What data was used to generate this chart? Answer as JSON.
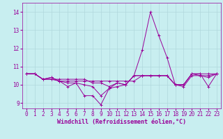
{
  "xlabel": "Windchill (Refroidissement éolien,°C)",
  "background_color": "#c8eef0",
  "grid_color": "#b0d8dc",
  "line_color": "#990099",
  "hours": [
    0,
    1,
    2,
    3,
    4,
    5,
    6,
    7,
    8,
    9,
    10,
    11,
    12,
    13,
    14,
    15,
    16,
    17,
    18,
    19,
    20,
    21,
    22,
    23
  ],
  "series": [
    [
      10.6,
      10.6,
      10.3,
      10.4,
      10.2,
      9.9,
      10.1,
      9.4,
      9.4,
      8.9,
      9.8,
      10.1,
      10.0,
      10.5,
      11.9,
      14.0,
      12.7,
      11.5,
      10.0,
      10.0,
      10.6,
      10.6,
      9.9,
      10.6
    ],
    [
      10.6,
      10.6,
      10.3,
      10.4,
      10.2,
      10.2,
      10.2,
      10.2,
      10.2,
      10.2,
      10.2,
      10.2,
      10.2,
      10.2,
      10.5,
      10.5,
      10.5,
      10.5,
      10.0,
      10.0,
      10.6,
      10.6,
      10.6,
      10.6
    ],
    [
      10.6,
      10.6,
      10.3,
      10.3,
      10.3,
      10.3,
      10.3,
      10.3,
      10.1,
      10.1,
      9.9,
      10.1,
      10.0,
      10.5,
      10.5,
      10.5,
      10.5,
      10.5,
      10.0,
      10.0,
      10.6,
      10.5,
      10.4,
      10.6
    ],
    [
      10.6,
      10.6,
      10.3,
      10.3,
      10.2,
      10.1,
      10.1,
      10.0,
      9.9,
      9.4,
      9.8,
      9.9,
      10.0,
      10.5,
      10.5,
      10.5,
      10.5,
      10.5,
      10.0,
      9.9,
      10.5,
      10.5,
      10.5,
      10.6
    ]
  ],
  "xlim": [
    -0.5,
    23.5
  ],
  "ylim": [
    8.7,
    14.5
  ],
  "yticks": [
    9,
    10,
    11,
    12,
    13,
    14
  ],
  "xticks": [
    0,
    1,
    2,
    3,
    4,
    5,
    6,
    7,
    8,
    9,
    10,
    11,
    12,
    13,
    14,
    15,
    16,
    17,
    18,
    19,
    20,
    21,
    22,
    23
  ],
  "marker": "+",
  "linewidth": 0.7,
  "markersize": 3,
  "markeredgewidth": 0.7,
  "fontsize_label": 6,
  "fontsize_tick": 5.5
}
